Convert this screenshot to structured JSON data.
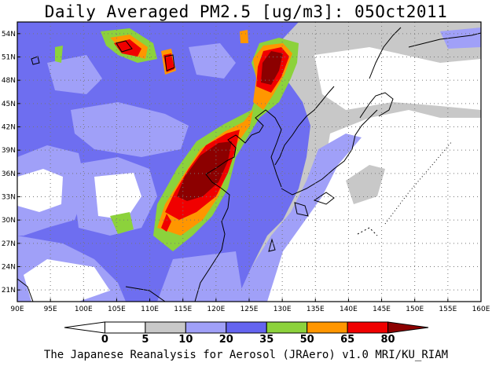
{
  "title": "Daily Averaged PM2.5 [ug/m3]: 05Oct2011",
  "footer": "The Japanese Reanalysis for Aerosol (JRAero) v1.0 MRI/KU_RIAM",
  "map": {
    "lon_range": [
      90,
      160
    ],
    "lat_range": [
      19.5,
      55.5
    ],
    "x_ticks": [
      "90E",
      "95E",
      "100E",
      "105E",
      "110E",
      "115E",
      "120E",
      "125E",
      "130E",
      "135E",
      "140E",
      "145E",
      "150E",
      "155E",
      "160E"
    ],
    "y_ticks": [
      "54N",
      "51N",
      "48N",
      "45N",
      "42N",
      "39N",
      "36N",
      "33N",
      "30N",
      "27N",
      "24N",
      "21N"
    ],
    "grid": "dotted",
    "background_color": "#6e6ef0"
  },
  "colorbar": {
    "levels": [
      "0",
      "5",
      "10",
      "20",
      "35",
      "50",
      "65",
      "80"
    ],
    "colors": [
      "#ffffff",
      "#ffffff",
      "#c8c8c8",
      "#a0a0f8",
      "#6464f0",
      "#8cd23c",
      "#ff9600",
      "#f00000",
      "#8c0000"
    ],
    "extend": "both"
  }
}
